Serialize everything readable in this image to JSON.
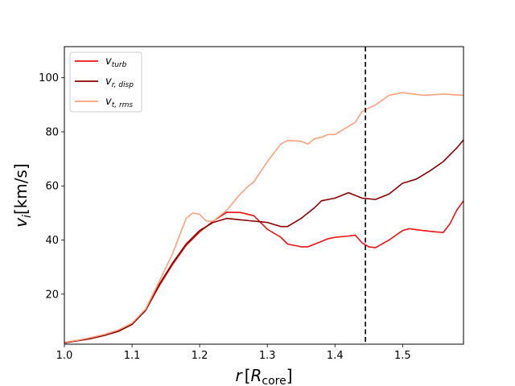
{
  "chart_data": {
    "type": "line",
    "xlabel_main": "r",
    "xlabel_unit": "R",
    "xlabel_unit_sub": "core",
    "ylabel_main": "v",
    "ylabel_sub": "i",
    "ylabel_unit": "[km/s]",
    "xlim": [
      1.0,
      1.59
    ],
    "ylim": [
      1.5,
      111.5
    ],
    "xticks": [
      1.0,
      1.1,
      1.2,
      1.3,
      1.4,
      1.5
    ],
    "xtick_labels": [
      "1.0",
      "1.1",
      "1.2",
      "1.3",
      "1.4",
      "1.5"
    ],
    "yticks": [
      20,
      40,
      60,
      80,
      100
    ],
    "ytick_labels": [
      "20",
      "40",
      "60",
      "80",
      "100"
    ],
    "grid": false,
    "legend_placement": "top-left",
    "vline": {
      "x": 1.445,
      "style": "dashed",
      "color": "#000000"
    },
    "series": [
      {
        "name": "v",
        "name_sub": "turb",
        "color": "#ee1111",
        "points": [
          [
            1.0,
            2
          ],
          [
            1.02,
            2.8
          ],
          [
            1.04,
            3.6
          ],
          [
            1.06,
            4.8
          ],
          [
            1.08,
            6.3
          ],
          [
            1.1,
            8.8
          ],
          [
            1.12,
            14
          ],
          [
            1.14,
            23
          ],
          [
            1.16,
            31
          ],
          [
            1.18,
            38
          ],
          [
            1.2,
            43
          ],
          [
            1.22,
            47
          ],
          [
            1.24,
            50.3
          ],
          [
            1.26,
            50.2
          ],
          [
            1.28,
            49
          ],
          [
            1.3,
            44
          ],
          [
            1.32,
            41
          ],
          [
            1.33,
            38.5
          ],
          [
            1.35,
            37.5
          ],
          [
            1.36,
            37.5
          ],
          [
            1.38,
            39.5
          ],
          [
            1.39,
            40.5
          ],
          [
            1.4,
            41
          ],
          [
            1.42,
            41.5
          ],
          [
            1.43,
            41.8
          ],
          [
            1.44,
            39
          ],
          [
            1.45,
            37.5
          ],
          [
            1.46,
            37.2
          ],
          [
            1.48,
            40
          ],
          [
            1.5,
            43.5
          ],
          [
            1.51,
            44.2
          ],
          [
            1.53,
            43.5
          ],
          [
            1.55,
            43
          ],
          [
            1.56,
            42.8
          ],
          [
            1.57,
            46
          ],
          [
            1.58,
            51
          ],
          [
            1.59,
            54.5
          ]
        ]
      },
      {
        "name": "v",
        "name_sub": "r, disp",
        "color": "#880000",
        "points": [
          [
            1.0,
            2
          ],
          [
            1.02,
            2.8
          ],
          [
            1.04,
            3.6
          ],
          [
            1.06,
            4.8
          ],
          [
            1.08,
            6.3
          ],
          [
            1.1,
            8.8
          ],
          [
            1.12,
            14
          ],
          [
            1.14,
            23.5
          ],
          [
            1.16,
            31.5
          ],
          [
            1.18,
            38.5
          ],
          [
            1.2,
            43.5
          ],
          [
            1.22,
            46.5
          ],
          [
            1.24,
            48
          ],
          [
            1.26,
            47.5
          ],
          [
            1.28,
            47
          ],
          [
            1.3,
            46.5
          ],
          [
            1.32,
            45
          ],
          [
            1.33,
            45
          ],
          [
            1.35,
            48
          ],
          [
            1.37,
            52
          ],
          [
            1.38,
            54.5
          ],
          [
            1.4,
            55.5
          ],
          [
            1.42,
            57.5
          ],
          [
            1.44,
            55.5
          ],
          [
            1.46,
            55
          ],
          [
            1.48,
            57
          ],
          [
            1.5,
            61
          ],
          [
            1.52,
            62.5
          ],
          [
            1.54,
            65.5
          ],
          [
            1.56,
            69
          ],
          [
            1.58,
            74
          ],
          [
            1.59,
            77
          ]
        ]
      },
      {
        "name": "v",
        "name_sub": "t, rms",
        "color": "#ffa07a",
        "points": [
          [
            1.0,
            2.2
          ],
          [
            1.02,
            3
          ],
          [
            1.04,
            4
          ],
          [
            1.06,
            5.2
          ],
          [
            1.08,
            6.8
          ],
          [
            1.1,
            9.3
          ],
          [
            1.12,
            14.5
          ],
          [
            1.14,
            24.5
          ],
          [
            1.16,
            35
          ],
          [
            1.18,
            48
          ],
          [
            1.19,
            50
          ],
          [
            1.2,
            49.5
          ],
          [
            1.21,
            47
          ],
          [
            1.22,
            47
          ],
          [
            1.24,
            51
          ],
          [
            1.26,
            57
          ],
          [
            1.27,
            59.5
          ],
          [
            1.28,
            61.5
          ],
          [
            1.3,
            69
          ],
          [
            1.32,
            75.5
          ],
          [
            1.33,
            76.8
          ],
          [
            1.35,
            76.5
          ],
          [
            1.36,
            75.5
          ],
          [
            1.37,
            77.5
          ],
          [
            1.38,
            78
          ],
          [
            1.39,
            79
          ],
          [
            1.4,
            79
          ],
          [
            1.42,
            82
          ],
          [
            1.43,
            83.5
          ],
          [
            1.44,
            87.5
          ],
          [
            1.46,
            90
          ],
          [
            1.48,
            93.5
          ],
          [
            1.5,
            94.5
          ],
          [
            1.53,
            93.5
          ],
          [
            1.56,
            94
          ],
          [
            1.59,
            93.5
          ]
        ]
      }
    ]
  }
}
